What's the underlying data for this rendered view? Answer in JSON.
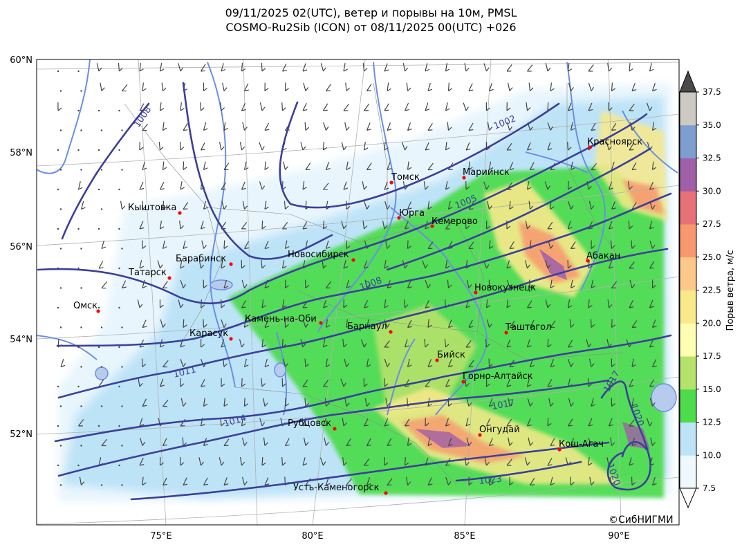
{
  "title": {
    "line1": "09/11/2025 02(UTC), ветер и порывы на 10м, PMSL",
    "line2": "COSMO-Ru2Sib (ICON) от 08/11/2025 00(UTC) +026"
  },
  "axes": {
    "lat_labels": [
      "60°N",
      "58°N",
      "56°N",
      "54°N",
      "52°N"
    ],
    "lon_labels": [
      "75°E",
      "80°E",
      "85°E",
      "90°E"
    ]
  },
  "colorbar": {
    "label": "Порыв ветра, м/с",
    "ticks": [
      "7.5",
      "10.0",
      "12.5",
      "15.0",
      "17.5",
      "20.0",
      "22.5",
      "25.0",
      "27.5",
      "30.0",
      "32.5",
      "35.0",
      "37.5"
    ],
    "colors": [
      "#f0f8ff",
      "#bde3f7",
      "#4cdc4c",
      "#b5e26a",
      "#ffffb3",
      "#f8e98a",
      "#fcc98a",
      "#f8986e",
      "#e87078",
      "#a060a8",
      "#7c9fd0",
      "#cdcac4"
    ],
    "over_color": "#4a4a4a",
    "under_color": "#ffffff"
  },
  "cities": [
    {
      "name": "Томск"
    },
    {
      "name": "Мариинск"
    },
    {
      "name": "Красноярск"
    },
    {
      "name": "Кыштовка"
    },
    {
      "name": "Юрга"
    },
    {
      "name": "Кемерово"
    },
    {
      "name": "Барабинск"
    },
    {
      "name": "Новосибирск"
    },
    {
      "name": "Абакан"
    },
    {
      "name": "Татарск"
    },
    {
      "name": "Новокузнецк"
    },
    {
      "name": "Омск"
    },
    {
      "name": "Камень-на-Оби"
    },
    {
      "name": "Барнаул"
    },
    {
      "name": "Таштагол"
    },
    {
      "name": "Карасук"
    },
    {
      "name": "Бийск"
    },
    {
      "name": "Горно-Алтайск"
    },
    {
      "name": "Рубцовск"
    },
    {
      "name": "Онгудай"
    },
    {
      "name": "Кош-Агач"
    },
    {
      "name": "Усть-Каменогорск"
    }
  ],
  "isobar_labels": [
    "1008",
    "1002",
    "1005",
    "1008",
    "1011",
    "1014",
    "1017",
    "1023",
    "1020",
    "1017",
    "1020"
  ],
  "colors": {
    "isobar": "#3b3f9a",
    "river": "#6a8ee6",
    "city_marker": "#ff0000",
    "barb": "#444444"
  },
  "copyright": "©СибНИГМИ"
}
